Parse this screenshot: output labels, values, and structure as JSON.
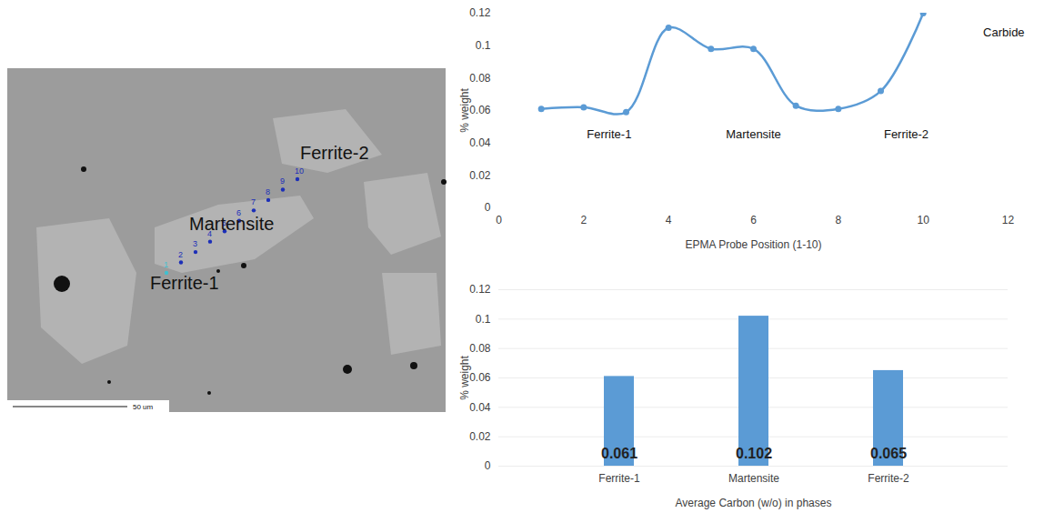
{
  "micrograph": {
    "labels": [
      "Ferrite-2",
      "Martensite",
      "Ferrite-1"
    ],
    "probe_labels": [
      1,
      2,
      3,
      4,
      5,
      6,
      7,
      8,
      9,
      10
    ],
    "scale_bar": "50 um"
  },
  "chart_data": [
    {
      "type": "line",
      "x_label": "EPMA Probe Position (1-10)",
      "y_label": "% weight",
      "x": [
        1,
        2,
        3,
        4,
        5,
        6,
        7,
        8,
        9,
        10
      ],
      "values": [
        0.061,
        0.062,
        0.059,
        0.111,
        0.098,
        0.098,
        0.063,
        0.061,
        0.072,
        0.12
      ],
      "color": "#5b9bd5",
      "marker": "circle",
      "line_style": "solid",
      "xlim": [
        0,
        12
      ],
      "xticks": [
        0,
        2,
        4,
        6,
        8,
        10,
        12
      ],
      "ylim": [
        0,
        0.12
      ],
      "yticks": [
        0,
        0.02,
        0.04,
        0.06,
        0.08,
        0.1,
        0.12
      ],
      "grid": false,
      "annotations": [
        {
          "text": "Ferrite-1",
          "x": 2.6,
          "y": 0.045
        },
        {
          "text": "Martensite",
          "x": 6.0,
          "y": 0.045
        },
        {
          "text": "Ferrite-2",
          "x": 9.6,
          "y": 0.045
        },
        {
          "text": "Carbide",
          "x": 11.9,
          "y": 0.108
        }
      ]
    },
    {
      "type": "bar",
      "x_label": "Average Carbon (w/o) in phases",
      "y_label": "% weight",
      "categories": [
        "Ferrite-1",
        "Martensite",
        "Ferrite-2"
      ],
      "values": [
        0.061,
        0.102,
        0.065
      ],
      "color": "#5b9bd5",
      "ylim": [
        0,
        0.12
      ],
      "yticks": [
        0,
        0.02,
        0.04,
        0.06,
        0.08,
        0.1,
        0.12
      ],
      "grid": true,
      "data_labels": true
    }
  ]
}
